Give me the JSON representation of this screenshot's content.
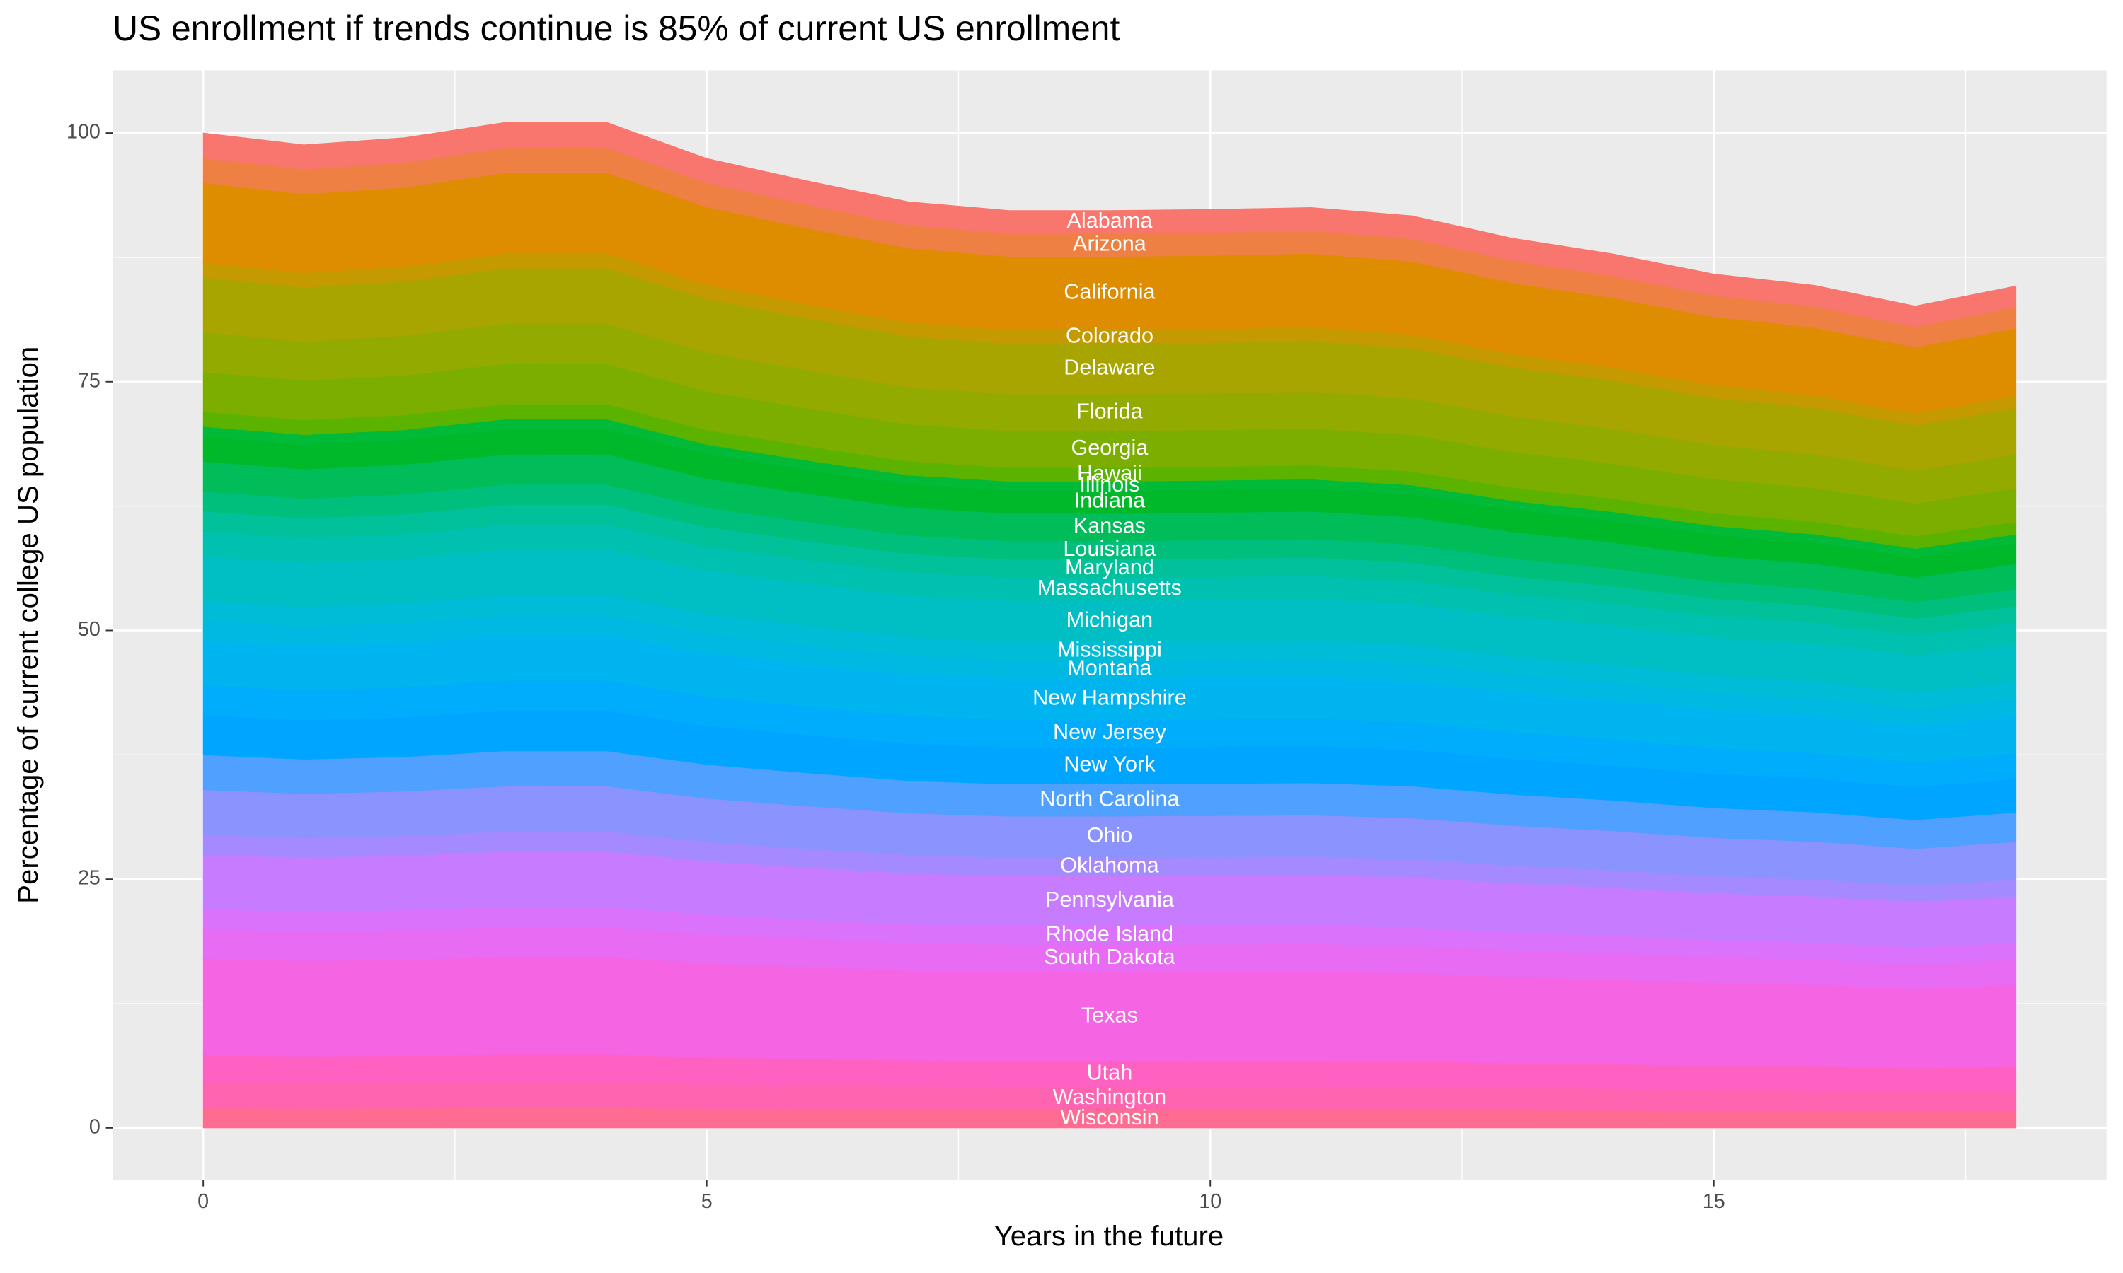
{
  "chart_data": {
    "type": "area",
    "stacked": true,
    "title": "US enrollment if trends continue is 85% of current US enrollment",
    "x_label": "Years in the future",
    "y_label": "Percentage of current college US population",
    "x": [
      0,
      1,
      2,
      3,
      4,
      5,
      6,
      7,
      8,
      9,
      10,
      11,
      12,
      13,
      14,
      15,
      16,
      17,
      18
    ],
    "xlim": [
      -0.9,
      18.9
    ],
    "xticks": [
      0,
      5,
      10,
      15
    ],
    "ylim": [
      -5.2,
      106.3
    ],
    "yticks": [
      0,
      25,
      50,
      75,
      100
    ],
    "grid": true,
    "series": [
      {
        "name": "Wisconsin",
        "color": "#FF6C91",
        "values": [
          2,
          1.98,
          1.99,
          2.02,
          2.02,
          1.95,
          1.9,
          1.86,
          1.84,
          1.84,
          1.85,
          1.85,
          1.83,
          1.79,
          1.76,
          1.72,
          1.69,
          1.65,
          1.69
        ]
      },
      {
        "name": "Washington",
        "color": "#FF64B0",
        "values": [
          2.5,
          2.47,
          2.49,
          2.53,
          2.53,
          2.44,
          2.38,
          2.33,
          2.31,
          2.31,
          2.31,
          2.31,
          2.29,
          2.24,
          2.2,
          2.15,
          2.12,
          2.07,
          2.12
        ]
      },
      {
        "name": "Utah",
        "color": "#FF61C3",
        "values": [
          2.8,
          2.77,
          2.79,
          2.83,
          2.83,
          2.73,
          2.67,
          2.61,
          2.58,
          2.58,
          2.58,
          2.59,
          2.57,
          2.5,
          2.46,
          2.4,
          2.37,
          2.31,
          2.37
        ]
      },
      {
        "name": "Texas",
        "color": "#F564E3",
        "values": [
          9.7,
          9.58,
          9.65,
          9.8,
          9.81,
          9.45,
          9.23,
          9.03,
          8.94,
          8.94,
          8.95,
          8.97,
          8.89,
          8.67,
          8.52,
          8.32,
          8.22,
          8.01,
          8.21
        ]
      },
      {
        "name": "South Dakota",
        "color": "#E76BF3",
        "values": [
          3,
          2.96,
          2.99,
          3.03,
          3.03,
          2.92,
          2.86,
          2.79,
          2.77,
          2.77,
          2.77,
          2.78,
          2.75,
          2.68,
          2.63,
          2.57,
          2.54,
          2.48,
          2.54
        ]
      },
      {
        "name": "Rhode Island",
        "color": "#DB72FB",
        "values": [
          2,
          1.98,
          1.99,
          2.02,
          2.02,
          1.95,
          1.9,
          1.86,
          1.84,
          1.84,
          1.85,
          1.85,
          1.83,
          1.79,
          1.76,
          1.72,
          1.69,
          1.65,
          1.69
        ]
      },
      {
        "name": "Pennsylvania",
        "color": "#C77CFF",
        "values": [
          5.5,
          5.43,
          5.47,
          5.56,
          5.56,
          5.36,
          5.24,
          5.12,
          5.07,
          5.07,
          5.08,
          5.09,
          5.04,
          4.92,
          4.83,
          4.72,
          4.66,
          4.54,
          4.65
        ]
      },
      {
        "name": "Oklahoma",
        "color": "#A58AFF",
        "values": [
          2,
          1.98,
          1.99,
          2.02,
          2.02,
          1.95,
          1.9,
          1.86,
          1.84,
          1.84,
          1.85,
          1.85,
          1.83,
          1.79,
          1.76,
          1.72,
          1.69,
          1.65,
          1.69
        ]
      },
      {
        "name": "Ohio",
        "color": "#8B93FF",
        "values": [
          4.5,
          4.45,
          4.48,
          4.55,
          4.55,
          4.38,
          4.28,
          4.19,
          4.15,
          4.15,
          4.15,
          4.16,
          4.13,
          4.02,
          3.95,
          3.86,
          3.81,
          3.72,
          3.81
        ]
      },
      {
        "name": "North Carolina",
        "color": "#4FA0FF",
        "values": [
          3.5,
          3.46,
          3.48,
          3.54,
          3.54,
          3.41,
          3.33,
          3.26,
          3.23,
          3.23,
          3.23,
          3.24,
          3.21,
          3.13,
          3.07,
          3,
          2.96,
          2.89,
          2.96
        ]
      },
      {
        "name": "New York",
        "color": "#00A5FF",
        "values": [
          4,
          3.95,
          3.98,
          4.04,
          4.04,
          3.9,
          3.81,
          3.72,
          3.69,
          3.69,
          3.69,
          3.7,
          3.67,
          3.58,
          3.51,
          3.43,
          3.39,
          3.3,
          3.38
        ]
      },
      {
        "name": "New Jersey",
        "color": "#00ACFC",
        "values": [
          3,
          2.96,
          2.99,
          3.03,
          3.03,
          2.92,
          2.86,
          2.79,
          2.77,
          2.77,
          2.77,
          2.78,
          2.75,
          2.68,
          2.63,
          2.57,
          2.54,
          2.48,
          2.54
        ]
      },
      {
        "name": "New Hampshire",
        "color": "#00B4EF",
        "values": [
          4.5,
          4.45,
          4.48,
          4.55,
          4.55,
          4.38,
          4.28,
          4.19,
          4.15,
          4.15,
          4.15,
          4.16,
          4.13,
          4.02,
          3.95,
          3.86,
          3.81,
          3.72,
          3.81
        ]
      },
      {
        "name": "Montana",
        "color": "#00B9E3",
        "values": [
          2,
          1.98,
          1.99,
          2.02,
          2.02,
          1.95,
          1.9,
          1.86,
          1.84,
          1.84,
          1.85,
          1.85,
          1.83,
          1.79,
          1.76,
          1.72,
          1.69,
          1.65,
          1.69
        ]
      },
      {
        "name": "Mississippi",
        "color": "#00BCD6",
        "values": [
          2,
          1.98,
          1.99,
          2.02,
          2.02,
          1.95,
          1.9,
          1.86,
          1.84,
          1.84,
          1.85,
          1.85,
          1.83,
          1.79,
          1.76,
          1.72,
          1.69,
          1.65,
          1.69
        ]
      },
      {
        "name": "Michigan",
        "color": "#00BFC4",
        "values": [
          4.5,
          4.45,
          4.48,
          4.55,
          4.55,
          4.38,
          4.28,
          4.19,
          4.15,
          4.15,
          4.15,
          4.16,
          4.13,
          4.02,
          3.95,
          3.86,
          3.81,
          3.72,
          3.81
        ]
      },
      {
        "name": "Massachusetts",
        "color": "#00C0AF",
        "values": [
          2.5,
          2.47,
          2.49,
          2.53,
          2.53,
          2.44,
          2.38,
          2.33,
          2.31,
          2.31,
          2.31,
          2.31,
          2.29,
          2.24,
          2.2,
          2.15,
          2.12,
          2.07,
          2.12
        ]
      },
      {
        "name": "Maryland",
        "color": "#00C19A",
        "values": [
          2,
          1.98,
          1.99,
          2.02,
          2.02,
          1.95,
          1.9,
          1.86,
          1.84,
          1.84,
          1.85,
          1.85,
          1.83,
          1.79,
          1.76,
          1.72,
          1.69,
          1.65,
          1.69
        ]
      },
      {
        "name": "Louisiana",
        "color": "#00BF7D",
        "values": [
          2,
          1.98,
          1.99,
          2.02,
          2.02,
          1.95,
          1.9,
          1.86,
          1.84,
          1.84,
          1.85,
          1.85,
          1.83,
          1.79,
          1.76,
          1.72,
          1.69,
          1.65,
          1.69
        ]
      },
      {
        "name": "Kansas",
        "color": "#00BC59",
        "values": [
          3,
          2.96,
          2.99,
          3.03,
          3.03,
          2.92,
          2.86,
          2.79,
          2.77,
          2.77,
          2.77,
          2.78,
          2.75,
          2.68,
          2.63,
          2.57,
          2.54,
          2.48,
          2.54
        ]
      },
      {
        "name": "Indiana",
        "color": "#00B92A",
        "values": [
          2.5,
          2.47,
          2.49,
          2.53,
          2.53,
          2.44,
          2.38,
          2.33,
          2.31,
          2.31,
          2.31,
          2.31,
          2.29,
          2.24,
          2.2,
          2.15,
          2.12,
          2.07,
          2.12
        ]
      },
      {
        "name": "Illinois",
        "color": "#00BA38",
        "values": [
          1,
          0.99,
          1,
          1.01,
          1.01,
          0.97,
          0.95,
          0.93,
          0.92,
          0.92,
          0.92,
          0.93,
          0.92,
          0.89,
          0.88,
          0.86,
          0.85,
          0.83,
          0.85
        ]
      },
      {
        "name": "Hawaii",
        "color": "#5BB300",
        "values": [
          1.5,
          1.48,
          1.49,
          1.52,
          1.52,
          1.46,
          1.43,
          1.4,
          1.38,
          1.38,
          1.38,
          1.39,
          1.38,
          1.34,
          1.32,
          1.29,
          1.27,
          1.24,
          1.27
        ]
      },
      {
        "name": "Georgia",
        "color": "#7CAE00",
        "values": [
          4,
          3.95,
          3.98,
          4.04,
          4.04,
          3.9,
          3.81,
          3.72,
          3.69,
          3.69,
          3.69,
          3.7,
          3.67,
          3.58,
          3.51,
          3.43,
          3.39,
          3.3,
          3.38
        ]
      },
      {
        "name": "Florida",
        "color": "#93AA00",
        "values": [
          4,
          3.95,
          3.98,
          4.04,
          4.04,
          3.9,
          3.81,
          3.72,
          3.69,
          3.69,
          3.69,
          3.7,
          3.67,
          3.58,
          3.51,
          3.43,
          3.39,
          3.3,
          3.38
        ]
      },
      {
        "name": "Delaware",
        "color": "#A8A400",
        "values": [
          5.5,
          5.43,
          5.47,
          5.56,
          5.56,
          5.36,
          5.24,
          5.12,
          5.07,
          5.07,
          5.08,
          5.09,
          5.04,
          4.92,
          4.83,
          4.72,
          4.66,
          4.54,
          4.65
        ]
      },
      {
        "name": "Colorado",
        "color": "#C49A00",
        "values": [
          1.5,
          1.48,
          1.49,
          1.52,
          1.52,
          1.46,
          1.43,
          1.4,
          1.38,
          1.38,
          1.38,
          1.39,
          1.38,
          1.34,
          1.32,
          1.29,
          1.27,
          1.24,
          1.27
        ]
      },
      {
        "name": "California",
        "color": "#DE8C00",
        "values": [
          8,
          7.9,
          7.96,
          8.08,
          8.09,
          7.79,
          7.62,
          7.45,
          7.38,
          7.38,
          7.38,
          7.4,
          7.34,
          7.15,
          7.02,
          6.86,
          6.78,
          6.61,
          6.77
        ]
      },
      {
        "name": "Arizona",
        "color": "#EE8044",
        "values": [
          2.5,
          2.47,
          2.49,
          2.53,
          2.53,
          2.44,
          2.38,
          2.33,
          2.31,
          2.31,
          2.31,
          2.31,
          2.29,
          2.24,
          2.2,
          2.15,
          2.12,
          2.07,
          2.12
        ]
      },
      {
        "name": "Alabama",
        "color": "#F8766D",
        "values": [
          2.5,
          2.47,
          2.49,
          2.53,
          2.53,
          2.44,
          2.38,
          2.33,
          2.31,
          2.31,
          2.31,
          2.31,
          2.29,
          2.24,
          2.2,
          2.15,
          2.12,
          2.07,
          2.12
        ]
      }
    ]
  }
}
